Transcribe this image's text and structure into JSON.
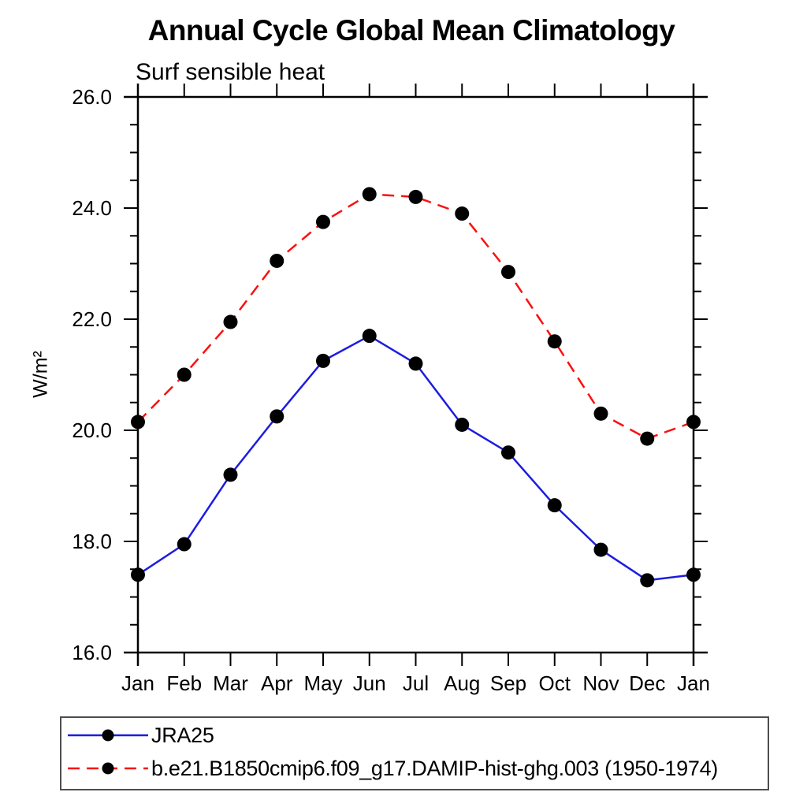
{
  "header": {
    "title": "Annual Cycle Global Mean Climatology",
    "subtitle": "Surf sensible heat"
  },
  "chart_data": {
    "type": "line",
    "title": "Annual Cycle Global Mean Climatology",
    "subtitle": "Surf sensible heat",
    "xlabel": "",
    "ylabel": "W/m²",
    "categories": [
      "Jan",
      "Feb",
      "Mar",
      "Apr",
      "May",
      "Jun",
      "Jul",
      "Aug",
      "Sep",
      "Oct",
      "Nov",
      "Dec",
      "Jan"
    ],
    "ylim": [
      16.0,
      26.0
    ],
    "ytick_major_interval": 2.0,
    "ytick_minor_interval": 0.5,
    "ytick_labels": [
      "16.0",
      "18.0",
      "20.0",
      "22.0",
      "24.0",
      "26.0"
    ],
    "grid": false,
    "legend_position": "bottom",
    "marker": "filled-circle",
    "marker_color": "#000000",
    "series": [
      {
        "name": "JRA25",
        "color": "#1c1ce0",
        "line_style": "solid",
        "values": [
          17.4,
          17.95,
          19.2,
          20.25,
          21.25,
          21.7,
          21.2,
          20.1,
          19.6,
          18.65,
          17.85,
          17.3,
          17.4
        ]
      },
      {
        "name": "b.e21.B1850cmip6.f09_g17.DAMIP-hist-ghg.003 (1950-1974)",
        "color": "#fb100f",
        "line_style": "dashed",
        "values": [
          20.15,
          21.0,
          21.95,
          23.05,
          23.75,
          24.25,
          24.2,
          23.9,
          22.85,
          21.6,
          20.3,
          19.85,
          20.15
        ]
      }
    ]
  }
}
